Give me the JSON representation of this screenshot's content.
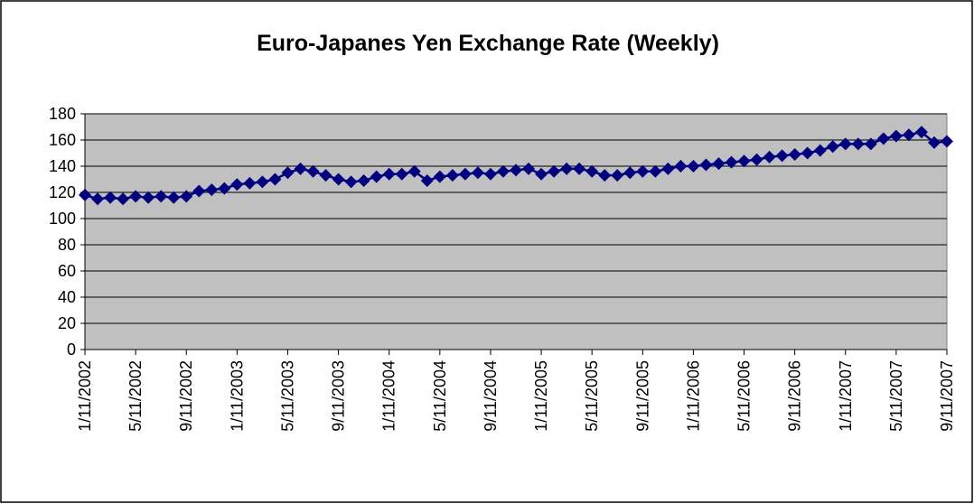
{
  "chart_data": {
    "type": "line",
    "title": "Euro-Japanes Yen Exchange Rate (Weekly)",
    "categories": [
      "1/11/2002",
      null,
      null,
      null,
      "5/11/2002",
      null,
      null,
      null,
      "9/11/2002",
      null,
      null,
      null,
      "1/11/2003",
      null,
      null,
      null,
      "5/11/2003",
      null,
      null,
      null,
      "9/11/2003",
      null,
      null,
      null,
      "1/11/2004",
      null,
      null,
      null,
      "5/11/2004",
      null,
      null,
      null,
      "9/11/2004",
      null,
      null,
      null,
      "1/11/2005",
      null,
      null,
      null,
      "5/11/2005",
      null,
      null,
      null,
      "9/11/2005",
      null,
      null,
      null,
      "1/11/2006",
      null,
      null,
      null,
      "5/11/2006",
      null,
      null,
      null,
      "9/11/2006",
      null,
      null,
      null,
      "1/11/2007",
      null,
      null,
      null,
      "5/11/2007",
      null,
      null,
      null,
      "9/11/2007"
    ],
    "series": [
      {
        "name": "Euro-Japanes Yen",
        "color": "#000080",
        "values": [
          118,
          115,
          116,
          115,
          117,
          116,
          117,
          116,
          117,
          121,
          122,
          123,
          126,
          127,
          128,
          130,
          135,
          138,
          136,
          133,
          130,
          128,
          129,
          132,
          134,
          134,
          136,
          129,
          132,
          133,
          134,
          135,
          134,
          136,
          137,
          138,
          134,
          136,
          138,
          138,
          136,
          133,
          133,
          135,
          136,
          136,
          138,
          140,
          140,
          141,
          142,
          143,
          144,
          145,
          147,
          148,
          149,
          150,
          152,
          155,
          157,
          157,
          157,
          161,
          163,
          164,
          166,
          158,
          159
        ]
      }
    ],
    "ylim": [
      0,
      180
    ],
    "yticks": [
      0,
      20,
      40,
      60,
      80,
      100,
      120,
      140,
      160,
      180
    ],
    "grid": true,
    "plot_background": "#c0c0c0"
  }
}
